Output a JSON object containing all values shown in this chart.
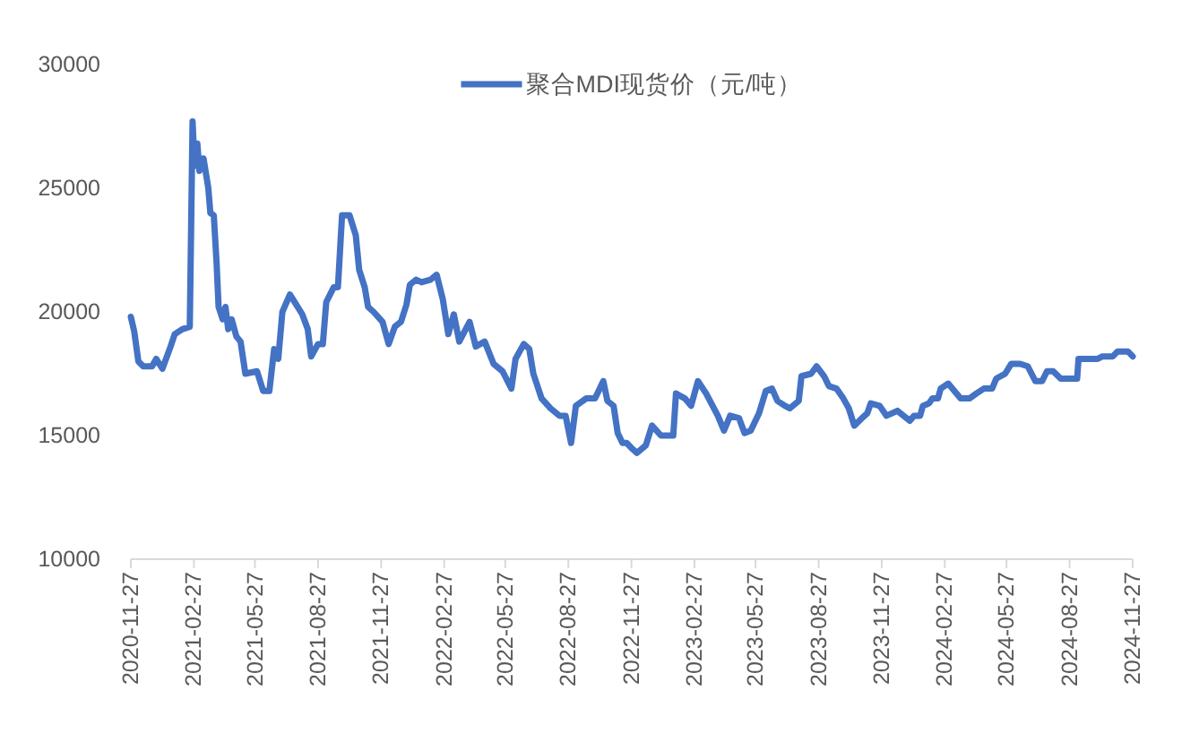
{
  "chart_data": {
    "type": "line",
    "x": [
      "2020-11-27",
      "2020-12-02",
      "2020-12-08",
      "2020-12-15",
      "2020-12-28",
      "2021-01-03",
      "2021-01-12",
      "2021-01-24",
      "2021-01-30",
      "2021-02-10",
      "2021-02-21",
      "2021-02-25",
      "2021-02-28",
      "2021-03-04",
      "2021-03-07",
      "2021-03-13",
      "2021-03-20",
      "2021-03-23",
      "2021-03-28",
      "2021-04-01",
      "2021-04-04",
      "2021-04-10",
      "2021-04-14",
      "2021-04-18",
      "2021-04-23",
      "2021-04-30",
      "2021-05-06",
      "2021-05-13",
      "2021-05-30",
      "2021-06-08",
      "2021-06-17",
      "2021-06-24",
      "2021-06-30",
      "2021-07-06",
      "2021-07-17",
      "2021-07-26",
      "2021-08-04",
      "2021-08-12",
      "2021-08-17",
      "2021-08-27",
      "2021-09-03",
      "2021-09-08",
      "2021-09-19",
      "2021-09-25",
      "2021-10-01",
      "2021-10-12",
      "2021-10-21",
      "2021-10-26",
      "2021-11-03",
      "2021-11-08",
      "2021-11-16",
      "2021-11-29",
      "2021-12-08",
      "2021-12-17",
      "2021-12-26",
      "2022-01-03",
      "2022-01-08",
      "2022-01-17",
      "2022-01-25",
      "2022-02-07",
      "2022-02-16",
      "2022-02-25",
      "2022-03-05",
      "2022-03-13",
      "2022-03-21",
      "2022-04-05",
      "2022-04-14",
      "2022-04-27",
      "2022-05-10",
      "2022-05-23",
      "2022-06-05",
      "2022-06-11",
      "2022-06-23",
      "2022-07-01",
      "2022-07-07",
      "2022-07-19",
      "2022-08-01",
      "2022-08-14",
      "2022-08-23",
      "2022-08-31",
      "2022-09-07",
      "2022-09-22",
      "2022-10-05",
      "2022-10-17",
      "2022-10-23",
      "2022-11-01",
      "2022-11-07",
      "2022-11-14",
      "2022-11-20",
      "2022-11-27",
      "2022-12-05",
      "2022-12-18",
      "2022-12-27",
      "2023-01-09",
      "2023-01-27",
      "2023-01-31",
      "2023-02-13",
      "2023-02-22",
      "2023-03-04",
      "2023-03-16",
      "2023-04-02",
      "2023-04-11",
      "2023-04-20",
      "2023-05-03",
      "2023-05-11",
      "2023-05-20",
      "2023-06-01",
      "2023-06-11",
      "2023-06-20",
      "2023-06-28",
      "2023-07-09",
      "2023-07-16",
      "2023-07-29",
      "2023-08-02",
      "2023-08-16",
      "2023-08-24",
      "2023-09-04",
      "2023-09-11",
      "2023-09-22",
      "2023-10-02",
      "2023-10-10",
      "2023-10-18",
      "2023-10-29",
      "2023-11-06",
      "2023-11-11",
      "2023-11-24",
      "2023-12-04",
      "2023-12-20",
      "2023-12-29",
      "2024-01-07",
      "2024-01-13",
      "2024-01-22",
      "2024-01-26",
      "2024-02-04",
      "2024-02-09",
      "2024-02-17",
      "2024-02-21",
      "2024-03-03",
      "2024-03-12",
      "2024-03-21",
      "2024-04-03",
      "2024-04-13",
      "2024-04-24",
      "2024-05-06",
      "2024-05-12",
      "2024-05-25",
      "2024-06-03",
      "2024-06-16",
      "2024-06-27",
      "2024-07-08",
      "2024-07-18",
      "2024-07-25",
      "2024-08-03",
      "2024-08-14",
      "2024-09-07",
      "2024-09-09",
      "2024-10-07",
      "2024-10-14",
      "2024-10-29",
      "2024-11-05",
      "2024-11-20",
      "2024-11-27"
    ],
    "series": [
      {
        "name": "聚合MDI现货价（元/吨）",
        "color": "#4472c4",
        "values": [
          19800,
          19200,
          18000,
          17800,
          17800,
          18100,
          17700,
          18600,
          19100,
          19300,
          19400,
          27700,
          25900,
          26800,
          25700,
          26200,
          25000,
          24000,
          23900,
          22000,
          20200,
          19700,
          20200,
          19300,
          19700,
          19000,
          18800,
          17500,
          17600,
          16800,
          16800,
          18500,
          18100,
          20000,
          20700,
          20300,
          19900,
          19300,
          18200,
          18700,
          18700,
          20400,
          21000,
          21000,
          23900,
          23900,
          23100,
          21700,
          21000,
          20200,
          20000,
          19600,
          18700,
          19400,
          19600,
          20300,
          21100,
          21300,
          21200,
          21300,
          21500,
          20500,
          19100,
          19900,
          18800,
          19600,
          18600,
          18800,
          17900,
          17600,
          16900,
          18100,
          18700,
          18500,
          17500,
          16500,
          16100,
          15800,
          15800,
          14700,
          16200,
          16500,
          16500,
          17200,
          16400,
          16200,
          15100,
          14700,
          14700,
          14500,
          14300,
          14600,
          15400,
          15000,
          15000,
          16700,
          16500,
          16200,
          17200,
          16700,
          15800,
          15200,
          15800,
          15700,
          15100,
          15200,
          15900,
          16800,
          16900,
          16400,
          16200,
          16100,
          16400,
          17400,
          17500,
          17800,
          17400,
          17000,
          16900,
          16500,
          16100,
          15400,
          15700,
          15900,
          16300,
          16200,
          15800,
          16000,
          15800,
          15600,
          15800,
          15800,
          16200,
          16300,
          16500,
          16500,
          16900,
          17100,
          16800,
          16500,
          16500,
          16700,
          16900,
          16900,
          17300,
          17500,
          17900,
          17900,
          17800,
          17200,
          17200,
          17600,
          17600,
          17300,
          17300,
          18100,
          18100,
          18200,
          18200,
          18400,
          18400,
          18200
        ]
      }
    ],
    "xlim": [
      "2020-11-27",
      "2024-11-27"
    ],
    "xticks": [
      "2020-11-27",
      "2021-02-27",
      "2021-05-27",
      "2021-08-27",
      "2021-11-27",
      "2022-02-27",
      "2022-05-27",
      "2022-08-27",
      "2022-11-27",
      "2023-02-27",
      "2023-05-27",
      "2023-08-27",
      "2023-11-27",
      "2024-02-27",
      "2024-05-27",
      "2024-08-27",
      "2024-11-27"
    ],
    "ylim": [
      10000,
      30000
    ],
    "yticks": [
      10000,
      15000,
      20000,
      25000,
      30000
    ],
    "legend": "top"
  }
}
